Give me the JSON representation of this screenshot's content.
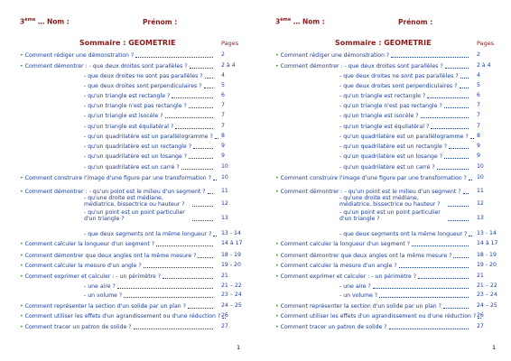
{
  "header": {
    "grade": "3",
    "grade_sup": "ème",
    "name_label": "… Nom :",
    "firstname_label": "Prénom :"
  },
  "title": "Sommaire : GEOMETRIE",
  "pages_label": "Pages",
  "entries": [
    {
      "bullet": true,
      "text": "Comment rédiger une démonstration ?",
      "page": "2"
    },
    {
      "bullet": true,
      "text": "Comment démontrer : - que deux droites sont parallèles ?",
      "page": "2 à 4"
    },
    {
      "bullet": false,
      "text": "- que deux droites ne sont pas parallèles ?",
      "page": "4"
    },
    {
      "bullet": false,
      "text": "- que deux droites sont perpendiculaires ?",
      "page": "5"
    },
    {
      "bullet": false,
      "text": "- qu'un triangle est rectangle ?",
      "page": "6"
    },
    {
      "bullet": false,
      "text": "- qu'un triangle n'est pas rectangle ?",
      "page": "7"
    },
    {
      "bullet": false,
      "text": "- qu'un triangle est isocèle ?",
      "page": "7"
    },
    {
      "bullet": false,
      "text": "- qu'un triangle est équilatéral ?",
      "page": "7"
    },
    {
      "bullet": false,
      "text": "- qu'un quadrilatère est un parallélogramme ?",
      "page": "8"
    },
    {
      "bullet": false,
      "text": "- qu'un quadrilatère est un rectangle ?",
      "page": "9"
    },
    {
      "bullet": false,
      "text": "- qu'un quadrilatère est un losange ?",
      "page": "9"
    },
    {
      "bullet": false,
      "text": "- qu'un quadrilatère est un carré ?",
      "page": "10"
    },
    {
      "bullet": true,
      "text": "Comment construire l'image d'une figure par une transformation ?",
      "page": "10"
    },
    {
      "bullet": true,
      "text": "Comment démontrer : - qu'un point est le milieu d'un segment ?",
      "page": "11"
    },
    {
      "bullet": false,
      "text": "- qu'une droite est médiane, médiatrice, bissectrice ou hauteur ?",
      "page": "12"
    },
    {
      "bullet": false,
      "text": "- qu'un point est un point particulier d'un triangle ?",
      "page": "13"
    },
    {
      "bullet": false,
      "text": "- que deux segments ont la même longueur ?",
      "page": "13 - 14"
    },
    {
      "bullet": true,
      "text": "Comment calculer la longueur d'un segment ?",
      "page": "14 à 17"
    },
    {
      "bullet": true,
      "text": "Comment démontrer que deux angles ont la même mesure ?",
      "page": "18 - 19"
    },
    {
      "bullet": true,
      "text": "Comment calculer la mesure d'un angle ?",
      "page": "19 - 20"
    },
    {
      "bullet": true,
      "text": "Comment exprimer et calculer : - un périmètre ?",
      "page": "21"
    },
    {
      "bullet": false,
      "text": "- une aire ?",
      "page": "21 – 22"
    },
    {
      "bullet": false,
      "text": "- un volume ?",
      "page": "23 – 24"
    },
    {
      "bullet": true,
      "text": "Comment représenter la section d'un solide par un plan ?",
      "page": "24 – 25"
    },
    {
      "bullet": true,
      "text": "Comment utiliser les effets d'un agrandissement ou d'une réduction ?",
      "page": "26"
    },
    {
      "bullet": true,
      "text": "Comment tracer un patron de solide ?",
      "page": "27"
    }
  ],
  "footer": "1"
}
